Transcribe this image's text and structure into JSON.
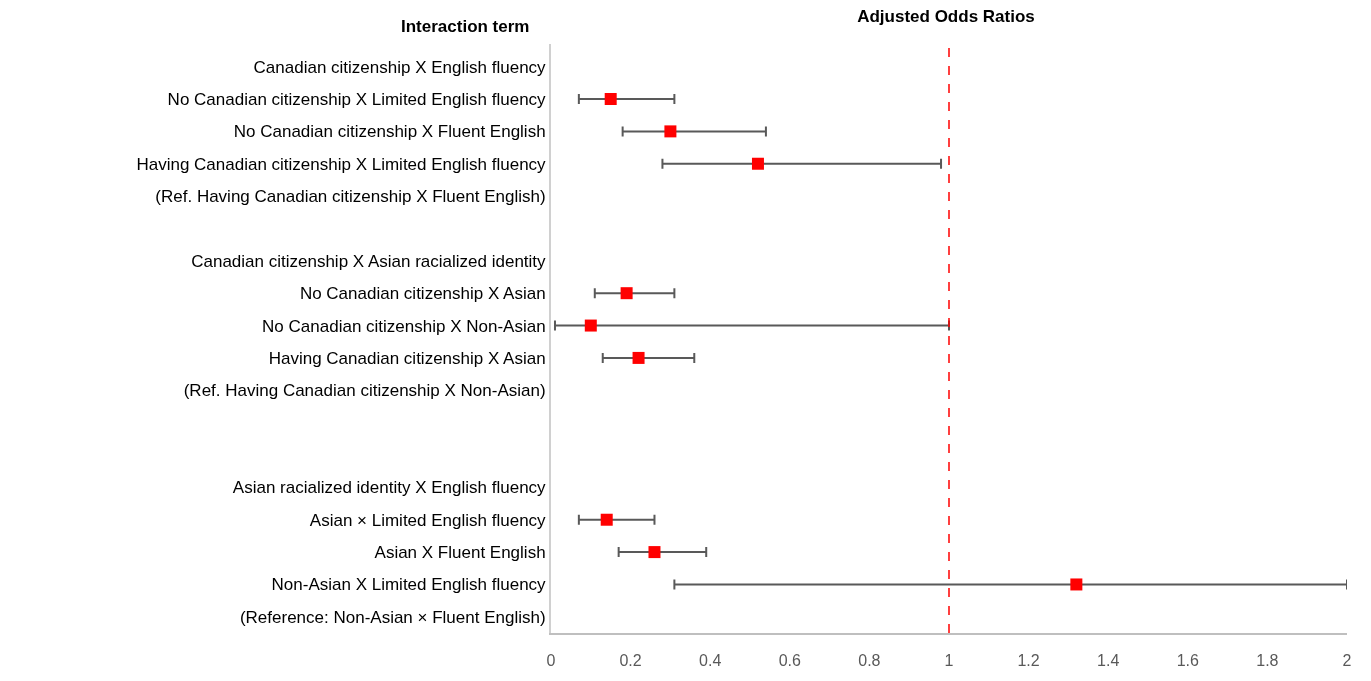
{
  "chart_data": {
    "type": "scatter",
    "orientation": "horizontal",
    "title": "Adjusted Odds Ratios",
    "ylabel": "Interaction term",
    "categories": [
      "Canadian citizenship X English fluency",
      "No Canadian citizenship X Limited English fluency",
      "No Canadian citizenship X Fluent English",
      "Having Canadian citizenship X Limited English fluency",
      "(Ref. Having Canadian citizenship X Fluent English)",
      null,
      "Canadian citizenship X Asian racialized identity",
      "No Canadian citizenship X Asian",
      "No Canadian citizenship X Non-Asian",
      "Having Canadian citizenship X Asian",
      "(Ref. Having Canadian citizenship X Non-Asian)",
      null,
      null,
      "Asian racialized identity X English fluency",
      "Asian × Limited English fluency",
      "Asian X Fluent English",
      "Non-Asian X Limited English fluency",
      "(Reference: Non-Asian × Fluent English)"
    ],
    "series": [
      {
        "color": "#ff0000",
        "values": [
          null,
          0.15,
          0.3,
          0.52,
          null,
          null,
          null,
          0.19,
          0.1,
          0.22,
          null,
          null,
          null,
          null,
          0.14,
          0.26,
          1.32,
          null
        ],
        "errors": [
          null,
          [
            0.07,
            0.31
          ],
          [
            0.18,
            0.54
          ],
          [
            0.28,
            0.98
          ],
          null,
          null,
          null,
          [
            0.11,
            0.31
          ],
          [
            0.01,
            1.0
          ],
          [
            0.13,
            0.36
          ],
          null,
          null,
          null,
          null,
          [
            0.07,
            0.26
          ],
          [
            0.17,
            0.39
          ],
          [
            0.31,
            2.0
          ],
          null
        ]
      }
    ],
    "xlim": [
      0,
      2
    ],
    "xticks": [
      0,
      0.2,
      0.4,
      0.6,
      0.8,
      1,
      1.2,
      1.4,
      1.6,
      1.8,
      2
    ],
    "ref_lines": [
      {
        "axis": "x",
        "value": 1,
        "color": "#ff0000",
        "line_style": "dashed"
      }
    ],
    "marker": "square",
    "grid": false
  }
}
